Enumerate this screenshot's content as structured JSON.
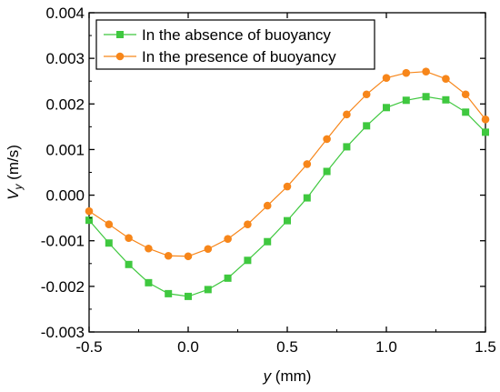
{
  "chart_data": {
    "type": "line",
    "xlabel_var": "y",
    "xlabel_unit": " (mm)",
    "ylabel_var": "V",
    "ylabel_sub": "y",
    "ylabel_unit": " (m/s)",
    "xlim": [
      -0.5,
      1.5
    ],
    "ylim": [
      -0.003,
      0.004
    ],
    "xticks": [
      -0.5,
      0.0,
      0.5,
      1.0,
      1.5
    ],
    "xtick_labels": [
      "-0.5",
      "0.0",
      "0.5",
      "1.0",
      "1.5"
    ],
    "yticks": [
      -0.003,
      -0.002,
      -0.001,
      0.0,
      0.001,
      0.002,
      0.003,
      0.004
    ],
    "ytick_labels": [
      "-0.003",
      "-0.002",
      "-0.001",
      "0.000",
      "0.001",
      "0.002",
      "0.003",
      "0.004"
    ],
    "legend_position": "top-left",
    "grid": false,
    "series": [
      {
        "name": "In the absence of buoyancy",
        "color": "#3fc83f",
        "marker": "square",
        "x": [
          -0.5,
          -0.4,
          -0.3,
          -0.2,
          -0.1,
          0.0,
          0.1,
          0.2,
          0.3,
          0.4,
          0.5,
          0.6,
          0.7,
          0.8,
          0.9,
          1.0,
          1.1,
          1.2,
          1.3,
          1.4,
          1.5
        ],
        "values": [
          -0.00055,
          -0.00105,
          -0.00152,
          -0.00192,
          -0.00216,
          -0.00222,
          -0.00207,
          -0.00182,
          -0.00143,
          -0.00102,
          -0.00056,
          -6e-05,
          0.00052,
          0.00106,
          0.00152,
          0.00192,
          0.00208,
          0.00216,
          0.00209,
          0.00182,
          0.00138
        ]
      },
      {
        "name": "In the presence of buoyancy",
        "color": "#f7861a",
        "marker": "circle",
        "x": [
          -0.5,
          -0.4,
          -0.3,
          -0.2,
          -0.1,
          0.0,
          0.1,
          0.2,
          0.3,
          0.4,
          0.5,
          0.6,
          0.7,
          0.8,
          0.9,
          1.0,
          1.1,
          1.2,
          1.3,
          1.4,
          1.5
        ],
        "values": [
          -0.00035,
          -0.00064,
          -0.00094,
          -0.00117,
          -0.00133,
          -0.00134,
          -0.00118,
          -0.00096,
          -0.00064,
          -0.00023,
          0.00019,
          0.00068,
          0.00123,
          0.00177,
          0.00221,
          0.00257,
          0.00268,
          0.00271,
          0.00255,
          0.00221,
          0.00166
        ]
      }
    ]
  }
}
